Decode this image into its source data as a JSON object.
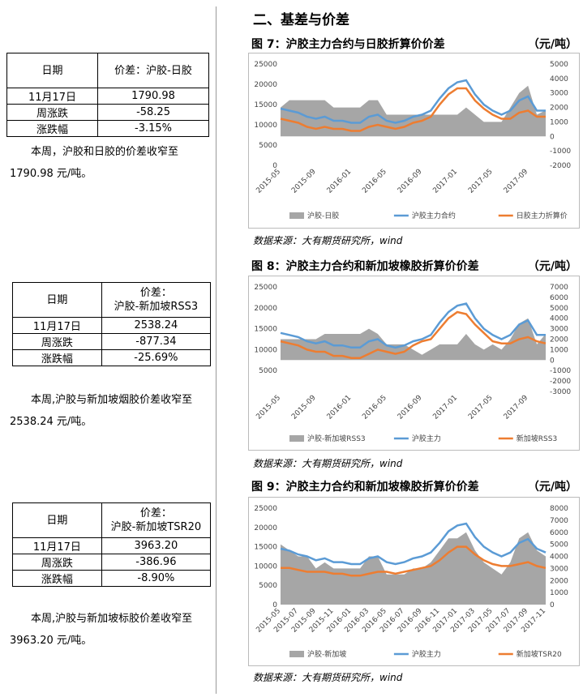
{
  "section_title": "二、基差与价差",
  "tables": [
    {
      "headers": [
        [
          "日期"
        ],
        [
          "价差：沪胶-日胶"
        ]
      ],
      "rows": [
        [
          "11月17日",
          "1790.98"
        ],
        [
          "周涨跌",
          "-58.25"
        ],
        [
          "涨跌幅",
          "-3.15%"
        ]
      ]
    },
    {
      "headers": [
        [
          "日期"
        ],
        [
          "价差：",
          "沪胶-新加坡RSS3"
        ]
      ],
      "rows": [
        [
          "11月17日",
          "2538.24"
        ],
        [
          "周涨跌",
          "-877.34"
        ],
        [
          "涨跌幅",
          "-25.69%"
        ]
      ]
    },
    {
      "headers": [
        [
          "日期"
        ],
        [
          "价差：",
          "沪胶-新加坡TSR20"
        ]
      ],
      "rows": [
        [
          "11月17日",
          "3963.20"
        ],
        [
          "周涨跌",
          "-386.96"
        ],
        [
          "涨跌幅",
          "-8.90%"
        ]
      ]
    }
  ],
  "paragraphs": [
    "本周，沪胶和日胶的价差收窄至 1790.98 元/吨。",
    "本周,沪胶与新加坡烟胶价差收窄至 2538.24 元/吨。",
    "本周,沪胶与新加坡标胶价差收窄至 3963.20 元/吨。"
  ],
  "figures": [
    {
      "title": "图 7：沪胶主力合约与日胶折算价价差",
      "unit": "（元/吨）",
      "source": "数据来源：大有期货研究所，wind",
      "chart_data": {
        "type": "line",
        "categories": [
          "2015-05",
          null,
          null,
          null,
          "2015-09",
          null,
          null,
          null,
          "2016-01",
          null,
          null,
          null,
          "2016-05",
          null,
          null,
          null,
          "2016-09",
          null,
          null,
          null,
          "2017-01",
          null,
          null,
          null,
          "2017-05",
          null,
          null,
          null,
          "2017-09",
          null,
          null
        ],
        "ylim": [
          0,
          25000
        ],
        "yticks": [
          0,
          5000,
          10000,
          15000,
          20000,
          25000
        ],
        "y2lim": [
          -2000,
          5000
        ],
        "y2ticks": [
          -2000,
          -1000,
          0,
          1000,
          2000,
          3000,
          4000,
          5000
        ],
        "series": [
          {
            "name": "沪胶-日胶",
            "type": "area",
            "axis": "y2",
            "color": "#a6a6a6",
            "values": [
              2000,
              2500,
              2500,
              2500,
              2500,
              2500,
              2000,
              2000,
              2000,
              2000,
              2500,
              2500,
              1500,
              1500,
              1500,
              1500,
              1500,
              1500,
              1500,
              1500,
              1500,
              2000,
              1500,
              1000,
              1000,
              1000,
              2000,
              3000,
              3500,
              1500,
              1800
            ]
          },
          {
            "name": "沪胶主力合约",
            "color": "#5b9bd5",
            "values": [
              14000,
              13500,
              13000,
              12000,
              11500,
              12000,
              11000,
              11000,
              10500,
              10500,
              12000,
              12500,
              11000,
              10500,
              11000,
              12000,
              12500,
              13500,
              16500,
              19000,
              20500,
              21000,
              17500,
              15000,
              13500,
              12500,
              13500,
              16000,
              17000,
              13500,
              13500
            ]
          },
          {
            "name": "日胶主力折算价",
            "color": "#ed7d31",
            "values": [
              11500,
              11000,
              10500,
              9500,
              9000,
              9500,
              9000,
              9000,
              8500,
              8500,
              9500,
              10000,
              9500,
              9000,
              9500,
              10500,
              11000,
              12000,
              15000,
              17500,
              19000,
              19000,
              16000,
              14000,
              12500,
              11500,
              11500,
              13000,
              13500,
              12000,
              12000
            ]
          }
        ]
      }
    },
    {
      "title": "图 8：沪胶主力合约和新加坡橡胶折算价价差",
      "unit": "（元/吨）",
      "source": "数据来源：大有期货研究所，wind",
      "chart_data": {
        "type": "line",
        "categories": [
          "2015-05",
          null,
          null,
          null,
          "2015-09",
          null,
          null,
          null,
          "2016-01",
          null,
          null,
          null,
          "2016-05",
          null,
          null,
          null,
          "2016-09",
          null,
          null,
          null,
          "2017-01",
          null,
          null,
          null,
          "2017-05",
          null,
          null,
          null,
          "2017-09",
          null,
          null
        ],
        "ylim": [
          0,
          25000
        ],
        "yticks": [
          5000,
          10000,
          15000,
          20000,
          25000
        ],
        "y2lim": [
          -3000,
          7000
        ],
        "y2ticks": [
          -3000,
          -2000,
          -1000,
          0,
          1000,
          2000,
          3000,
          4000,
          5000,
          6000,
          7000
        ],
        "series": [
          {
            "name": "沪胶-新加坡RSS3",
            "type": "area",
            "axis": "y2",
            "color": "#a6a6a6",
            "values": [
              2000,
              2000,
              2000,
              2000,
              2000,
              2500,
              2500,
              2500,
              2500,
              2500,
              3000,
              2500,
              1500,
              1500,
              1500,
              1000,
              500,
              1000,
              1500,
              1500,
              1500,
              2500,
              1500,
              1000,
              1500,
              1000,
              2000,
              3500,
              4000,
              1500,
              2500
            ]
          },
          {
            "name": "沪胶主力",
            "color": "#5b9bd5",
            "values": [
              14000,
              13500,
              13000,
              12000,
              11500,
              12000,
              11000,
              11000,
              10500,
              10500,
              12000,
              12500,
              11000,
              10500,
              11000,
              12000,
              12500,
              13500,
              16500,
              19000,
              20500,
              21000,
              17500,
              15000,
              13500,
              12500,
              13500,
              16000,
              17000,
              13500,
              13500
            ]
          },
          {
            "name": "新加坡RSS3",
            "color": "#ed7d31",
            "values": [
              12000,
              11500,
              11000,
              10000,
              9500,
              9500,
              8500,
              8500,
              8000,
              8000,
              9000,
              10000,
              9500,
              9000,
              9500,
              11000,
              12000,
              12500,
              15000,
              17500,
              19000,
              18500,
              16000,
              14000,
              12000,
              11500,
              11500,
              12500,
              13000,
              12000,
              11500
            ]
          }
        ]
      }
    },
    {
      "title": "图 9：沪胶主力合约和新加坡橡胶折算价价差",
      "unit": "（元/吨）",
      "source": "数据来源：大有期货研究所，wind",
      "chart_data": {
        "type": "line",
        "categories": [
          "2015-05",
          null,
          "2015-07",
          null,
          "2015-09",
          null,
          "2015-11",
          null,
          "2016-01",
          null,
          "2016-03",
          null,
          "2016-05",
          null,
          "2016-07",
          null,
          "2016-09",
          null,
          "2016-11",
          null,
          "2017-01",
          null,
          "2017-03",
          null,
          "2017-05",
          null,
          "2017-07",
          null,
          "2017-09",
          null,
          "2017-11"
        ],
        "ylim": [
          0,
          25000
        ],
        "yticks": [
          0,
          5000,
          10000,
          15000,
          20000,
          25000
        ],
        "y2lim": [
          0,
          8000
        ],
        "y2ticks": [
          0,
          1000,
          2000,
          3000,
          4000,
          5000,
          6000,
          7000,
          8000
        ],
        "series": [
          {
            "name": "沪胶-新加坡",
            "type": "area",
            "axis": "y2",
            "color": "#a6a6a6",
            "values": [
              5000,
              4500,
              4000,
              4000,
              3000,
              3500,
              3000,
              3000,
              3000,
              3000,
              4000,
              4000,
              2500,
              2500,
              2500,
              3000,
              3000,
              3500,
              4500,
              5500,
              5500,
              6000,
              4500,
              3500,
              3000,
              2500,
              3500,
              5500,
              6000,
              4500,
              4000
            ]
          },
          {
            "name": "沪胶主力",
            "color": "#5b9bd5",
            "values": [
              14500,
              14000,
              13000,
              12500,
              11500,
              12000,
              11000,
              11000,
              10500,
              10500,
              12000,
              12500,
              11000,
              10500,
              11000,
              12000,
              12500,
              13500,
              16000,
              19000,
              20500,
              21000,
              17500,
              15000,
              13500,
              12500,
              13500,
              16000,
              17000,
              14500,
              13500
            ]
          },
          {
            "name": "新加坡TSR20",
            "color": "#ed7d31",
            "values": [
              9500,
              9500,
              9000,
              8500,
              8500,
              8500,
              8000,
              8000,
              7500,
              7500,
              8000,
              8500,
              8500,
              8000,
              8500,
              9000,
              9500,
              10000,
              11500,
              13500,
              15000,
              15000,
              13000,
              11500,
              10500,
              10000,
              10000,
              10500,
              11000,
              10000,
              9500
            ]
          }
        ]
      }
    }
  ]
}
